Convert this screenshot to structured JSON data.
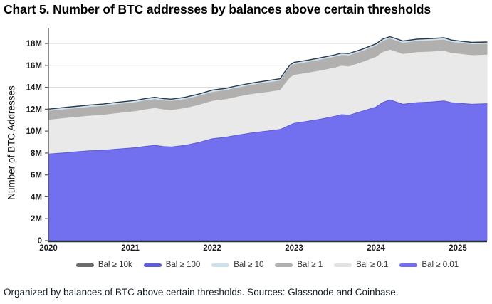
{
  "page": {
    "background": "#ffffff"
  },
  "chart_data": {
    "type": "area",
    "stacked": true,
    "title": "Chart 5. Number of BTC addresses by balances above certain thresholds",
    "ylabel": "Number of BTC Addresses",
    "caption": "Organized by balances of BTC above certain thresholds. Sources: Glassnode and Coinbase.",
    "units": "millions of addresses",
    "grid": true,
    "legend_position": "bottom",
    "xlim": [
      2020,
      2025.36
    ],
    "ylim": [
      0,
      19.4
    ],
    "x_ticks": [
      {
        "v": 2020,
        "label": "2020"
      },
      {
        "v": 2021,
        "label": "2021"
      },
      {
        "v": 2022,
        "label": "2022"
      },
      {
        "v": 2023,
        "label": "2023"
      },
      {
        "v": 2024,
        "label": "2024"
      },
      {
        "v": 2025,
        "label": "2025"
      }
    ],
    "y_ticks": [
      {
        "v": 0,
        "label": "0"
      },
      {
        "v": 2,
        "label": "2M"
      },
      {
        "v": 4,
        "label": "4M"
      },
      {
        "v": 6,
        "label": "6M"
      },
      {
        "v": 8,
        "label": "8M"
      },
      {
        "v": 10,
        "label": "10M"
      },
      {
        "v": 12,
        "label": "12M"
      },
      {
        "v": 14,
        "label": "14M"
      },
      {
        "v": 16,
        "label": "16M"
      },
      {
        "v": 18,
        "label": "18M"
      }
    ],
    "x": [
      2020.0,
      2020.17,
      2020.33,
      2020.5,
      2020.67,
      2020.83,
      2021.0,
      2021.08,
      2021.17,
      2021.3,
      2021.4,
      2021.5,
      2021.67,
      2021.83,
      2022.0,
      2022.17,
      2022.25,
      2022.33,
      2022.5,
      2022.67,
      2022.83,
      2022.88,
      2022.95,
      2023.0,
      2023.17,
      2023.33,
      2023.5,
      2023.58,
      2023.67,
      2023.83,
      2024.0,
      2024.08,
      2024.17,
      2024.25,
      2024.33,
      2024.5,
      2024.67,
      2024.83,
      2024.92,
      2025.0,
      2025.17,
      2025.36
    ],
    "series": [
      {
        "name": "Bal ≥ 0.01",
        "color": "#7370f0",
        "values": [
          7.9,
          8.0,
          8.1,
          8.2,
          8.25,
          8.35,
          8.45,
          8.5,
          8.6,
          8.7,
          8.6,
          8.55,
          8.7,
          8.95,
          9.3,
          9.45,
          9.55,
          9.65,
          9.85,
          10.0,
          10.15,
          10.3,
          10.55,
          10.7,
          10.9,
          11.1,
          11.35,
          11.5,
          11.45,
          11.8,
          12.2,
          12.6,
          12.85,
          12.65,
          12.45,
          12.6,
          12.65,
          12.75,
          12.6,
          12.55,
          12.45,
          12.5
        ]
      },
      {
        "name": "Bal ≥ 0.1",
        "color": "#e9e9e9",
        "values": [
          3.13,
          3.17,
          3.18,
          3.2,
          3.24,
          3.28,
          3.31,
          3.33,
          3.36,
          3.4,
          3.38,
          3.37,
          3.4,
          3.43,
          3.45,
          3.47,
          3.5,
          3.52,
          3.55,
          3.57,
          3.59,
          3.95,
          4.35,
          4.42,
          4.43,
          4.44,
          4.45,
          4.46,
          4.46,
          4.5,
          4.57,
          4.6,
          4.58,
          4.58,
          4.58,
          4.6,
          4.6,
          4.58,
          4.53,
          4.52,
          4.48,
          4.47
        ]
      },
      {
        "name": "Bal ≥ 1",
        "color": "#b1b0ae",
        "values": [
          0.8,
          0.8,
          0.8,
          0.81,
          0.81,
          0.82,
          0.82,
          0.82,
          0.82,
          0.82,
          0.82,
          0.82,
          0.82,
          0.82,
          0.82,
          0.82,
          0.83,
          0.83,
          0.84,
          0.86,
          0.87,
          0.92,
          0.97,
          0.98,
          0.98,
          0.99,
          0.99,
          0.99,
          1.0,
          1.0,
          1.02,
          1.02,
          1.02,
          1.02,
          1.02,
          1.02,
          1.02,
          1.02,
          1.01,
          1.0,
          1.0,
          0.99
        ]
      },
      {
        "name": "Bal ≥ 10",
        "color": "#cfe3ef",
        "values": [
          0.153,
          0.153,
          0.153,
          0.153,
          0.153,
          0.153,
          0.153,
          0.153,
          0.153,
          0.153,
          0.153,
          0.153,
          0.153,
          0.153,
          0.153,
          0.153,
          0.153,
          0.153,
          0.153,
          0.153,
          0.153,
          0.153,
          0.153,
          0.153,
          0.153,
          0.153,
          0.153,
          0.153,
          0.153,
          0.153,
          0.153,
          0.153,
          0.153,
          0.153,
          0.153,
          0.153,
          0.153,
          0.153,
          0.153,
          0.153,
          0.153,
          0.153
        ]
      },
      {
        "name": "Bal ≥ 100",
        "color": "#5f5ed6",
        "values": [
          0.016,
          0.016,
          0.016,
          0.016,
          0.016,
          0.016,
          0.016,
          0.016,
          0.016,
          0.016,
          0.016,
          0.016,
          0.016,
          0.016,
          0.016,
          0.016,
          0.016,
          0.016,
          0.016,
          0.016,
          0.016,
          0.016,
          0.016,
          0.016,
          0.016,
          0.016,
          0.016,
          0.016,
          0.016,
          0.016,
          0.016,
          0.016,
          0.016,
          0.016,
          0.016,
          0.016,
          0.016,
          0.016,
          0.016,
          0.016,
          0.016,
          0.016
        ]
      },
      {
        "name": "Bal ≥ 10k",
        "color": "#6b6b6b",
        "values": [
          0.0001,
          0.0001,
          0.0001,
          0.0001,
          0.0001,
          0.0001,
          0.0001,
          0.0001,
          0.0001,
          0.0001,
          0.0001,
          0.0001,
          0.0001,
          0.0001,
          0.0001,
          0.0001,
          0.0001,
          0.0001,
          0.0001,
          0.0001,
          0.0001,
          0.0001,
          0.0001,
          0.0001,
          0.0001,
          0.0001,
          0.0001,
          0.0001,
          0.0001,
          0.0001,
          0.0001,
          0.0001,
          0.0001,
          0.0001,
          0.0001,
          0.0001,
          0.0001,
          0.0001,
          0.0001,
          0.0001,
          0.0001,
          0.0001
        ]
      }
    ],
    "legend": [
      {
        "label": "Bal ≥ 10k",
        "color": "#6b6b6b"
      },
      {
        "label": "Bal ≥ 100",
        "color": "#5f5ed6"
      },
      {
        "label": "Bal ≥ 10",
        "color": "#cfe3ef"
      },
      {
        "label": "Bal ≥ 1",
        "color": "#b1b0ae"
      },
      {
        "label": "Bal ≥ 0.1",
        "color": "#e3e3e3"
      },
      {
        "label": "Bal ≥ 0.01",
        "color": "#7370f0"
      }
    ],
    "colors": {
      "top_line": "#2c3a4d",
      "blue_edge": "#5b59d8",
      "gridline": "#dadada",
      "axis_left": "#4d4d4d",
      "axis_bottom": "#223041",
      "tick": "#555555"
    }
  }
}
